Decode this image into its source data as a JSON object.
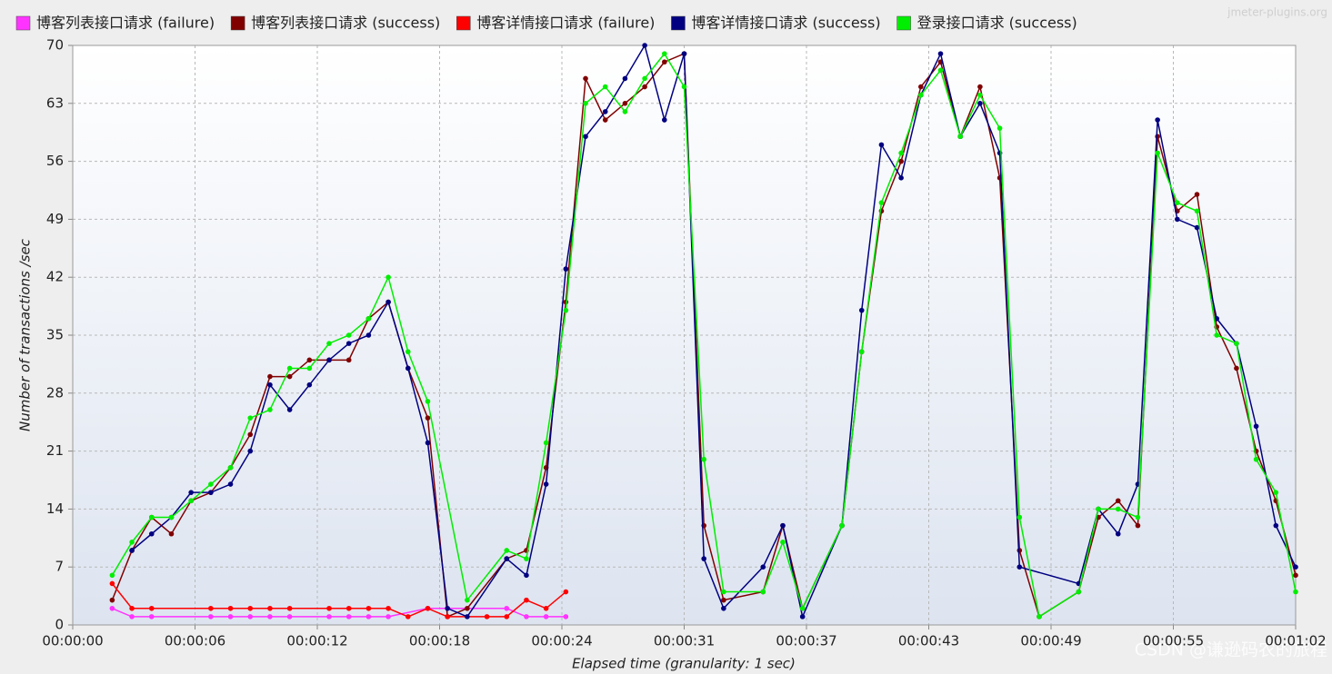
{
  "chart_data": {
    "type": "line",
    "watermark": "jmeter-plugins.org",
    "credit": "CSDN @谦逊码农的旅程",
    "xlabel": "Elapsed time (granularity: 1 sec)",
    "ylabel": "Number of transactions /sec",
    "xlim": [
      0,
      62
    ],
    "ylim": [
      0,
      70
    ],
    "xticks": [
      {
        "value": 0,
        "label": "00:00:00"
      },
      {
        "value": 6.2,
        "label": "00:00:06"
      },
      {
        "value": 12.4,
        "label": "00:00:12"
      },
      {
        "value": 18.6,
        "label": "00:00:18"
      },
      {
        "value": 24.8,
        "label": "00:00:24"
      },
      {
        "value": 31,
        "label": "00:00:31"
      },
      {
        "value": 37.2,
        "label": "00:00:37"
      },
      {
        "value": 43.4,
        "label": "00:00:43"
      },
      {
        "value": 49.6,
        "label": "00:00:49"
      },
      {
        "value": 55.8,
        "label": "00:00:55"
      },
      {
        "value": 62,
        "label": "00:01:02"
      }
    ],
    "yticks": [
      0,
      7,
      14,
      21,
      28,
      35,
      42,
      49,
      56,
      63,
      70
    ],
    "grid": true,
    "series": [
      {
        "name": "博客列表接口请求 (failure)",
        "color": "#ff33ff",
        "x": [
          2,
          3,
          4,
          7,
          8,
          9,
          10,
          11,
          13,
          14,
          15,
          16,
          18,
          22,
          23,
          24,
          25
        ],
        "values": [
          2,
          1,
          1,
          1,
          1,
          1,
          1,
          1,
          1,
          1,
          1,
          1,
          2,
          2,
          1,
          1,
          1
        ]
      },
      {
        "name": "博客列表接口请求 (success)",
        "color": "#800000",
        "x": [
          2,
          3,
          4,
          5,
          6,
          7,
          8,
          9,
          10,
          11,
          12,
          13,
          14,
          15,
          16,
          17,
          18,
          19,
          20,
          22,
          23,
          24,
          25,
          26,
          27,
          28,
          29,
          30,
          31,
          32,
          33,
          35,
          36,
          37,
          39,
          40,
          41,
          42,
          43,
          44,
          45,
          46,
          47,
          48,
          49,
          51,
          52,
          53,
          54,
          55,
          56,
          57,
          58,
          59,
          60,
          61,
          62
        ],
        "values": [
          3,
          9,
          13,
          11,
          15,
          16,
          19,
          23,
          30,
          30,
          32,
          32,
          32,
          37,
          39,
          31,
          25,
          1,
          2,
          8,
          9,
          19,
          39,
          66,
          61,
          63,
          65,
          68,
          69,
          12,
          3,
          4,
          12,
          2,
          12,
          33,
          50,
          56,
          65,
          68,
          59,
          65,
          54,
          9,
          1,
          4,
          13,
          15,
          12,
          59,
          50,
          52,
          36,
          31,
          21,
          15,
          6
        ]
      },
      {
        "name": "博客详情接口请求 (failure)",
        "color": "#ff0000",
        "x": [
          2,
          3,
          4,
          7,
          8,
          9,
          10,
          11,
          13,
          14,
          15,
          16,
          17,
          18,
          19,
          21,
          22,
          23,
          24,
          25
        ],
        "values": [
          5,
          2,
          2,
          2,
          2,
          2,
          2,
          2,
          2,
          2,
          2,
          2,
          1,
          2,
          1,
          1,
          1,
          3,
          2,
          4
        ]
      },
      {
        "name": "博客详情接口请求 (success)",
        "color": "#000080",
        "x": [
          3,
          4,
          5,
          6,
          7,
          8,
          9,
          10,
          11,
          12,
          13,
          14,
          15,
          16,
          17,
          18,
          19,
          20,
          22,
          23,
          24,
          25,
          26,
          27,
          28,
          29,
          30,
          31,
          32,
          33,
          35,
          36,
          37,
          39,
          40,
          41,
          42,
          43,
          44,
          45,
          46,
          47,
          48,
          51,
          52,
          53,
          54,
          55,
          56,
          57,
          58,
          59,
          60,
          61,
          62
        ],
        "values": [
          9,
          11,
          13,
          16,
          16,
          17,
          21,
          29,
          26,
          29,
          32,
          34,
          35,
          39,
          31,
          22,
          2,
          1,
          8,
          6,
          17,
          43,
          59,
          62,
          66,
          70,
          61,
          69,
          8,
          2,
          7,
          12,
          1,
          12,
          38,
          58,
          54,
          64,
          69,
          59,
          63,
          57,
          7,
          5,
          14,
          11,
          17,
          61,
          49,
          48,
          37,
          34,
          24,
          12,
          7
        ]
      },
      {
        "name": "登录接口请求 (success)",
        "color": "#00ee00",
        "x": [
          2,
          3,
          4,
          5,
          6,
          7,
          8,
          9,
          10,
          11,
          12,
          13,
          14,
          15,
          16,
          17,
          18,
          20,
          22,
          23,
          24,
          25,
          26,
          27,
          28,
          29,
          30,
          31,
          32,
          33,
          35,
          36,
          37,
          39,
          40,
          41,
          42,
          43,
          44,
          45,
          46,
          47,
          48,
          49,
          51,
          52,
          53,
          54,
          55,
          56,
          57,
          58,
          59,
          60,
          61,
          62
        ],
        "values": [
          6,
          10,
          13,
          13,
          15,
          17,
          19,
          25,
          26,
          31,
          31,
          34,
          35,
          37,
          42,
          33,
          27,
          3,
          9,
          8,
          22,
          38,
          63,
          65,
          62,
          66,
          69,
          65,
          20,
          4,
          4,
          10,
          2,
          12,
          33,
          51,
          57,
          64,
          67,
          59,
          64,
          60,
          13,
          1,
          4,
          14,
          14,
          13,
          57,
          51,
          50,
          35,
          34,
          20,
          16,
          4
        ]
      }
    ]
  }
}
